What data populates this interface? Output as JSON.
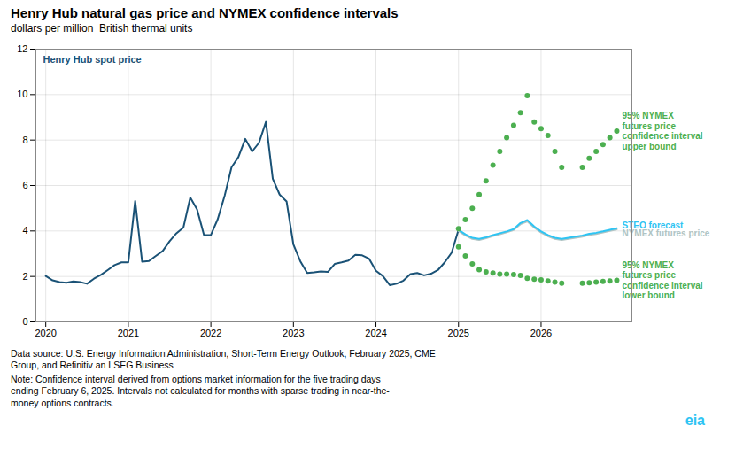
{
  "chart_data": {
    "type": "line",
    "title": "Henry Hub natural gas price and NYMEX confidence intervals",
    "subtitle": "dollars per million  British thermal units",
    "xlim": [
      2019.88,
      2027.1
    ],
    "xticks": [
      2020,
      2021,
      2022,
      2023,
      2024,
      2025,
      2026
    ],
    "ylim": [
      0,
      12
    ],
    "yticks": [
      0,
      2,
      4,
      6,
      8,
      10,
      12
    ],
    "grid": true,
    "series": [
      {
        "name": "Henry Hub spot price",
        "color": "#1A5276",
        "x": [
          2020.0,
          2020.083,
          2020.167,
          2020.25,
          2020.333,
          2020.417,
          2020.5,
          2020.583,
          2020.667,
          2020.75,
          2020.833,
          2020.917,
          2021.0,
          2021.083,
          2021.167,
          2021.25,
          2021.333,
          2021.417,
          2021.5,
          2021.583,
          2021.667,
          2021.75,
          2021.833,
          2021.917,
          2022.0,
          2022.083,
          2022.167,
          2022.25,
          2022.333,
          2022.417,
          2022.5,
          2022.583,
          2022.667,
          2022.75,
          2022.833,
          2022.917,
          2023.0,
          2023.083,
          2023.167,
          2023.25,
          2023.333,
          2023.417,
          2023.5,
          2023.583,
          2023.667,
          2023.75,
          2023.833,
          2023.917,
          2024.0,
          2024.083,
          2024.167,
          2024.25,
          2024.333,
          2024.417,
          2024.5,
          2024.583,
          2024.667,
          2024.75,
          2024.833,
          2024.917,
          2025.0
        ],
        "values": [
          2.02,
          1.83,
          1.75,
          1.72,
          1.78,
          1.75,
          1.68,
          1.9,
          2.07,
          2.28,
          2.5,
          2.62,
          2.62,
          5.32,
          2.65,
          2.68,
          2.9,
          3.12,
          3.55,
          3.9,
          4.15,
          5.47,
          4.95,
          3.82,
          3.82,
          4.52,
          5.55,
          6.8,
          7.25,
          8.05,
          7.5,
          7.88,
          8.8,
          6.3,
          5.6,
          5.3,
          3.4,
          2.67,
          2.15,
          2.18,
          2.22,
          2.2,
          2.55,
          2.62,
          2.7,
          2.95,
          2.93,
          2.78,
          2.25,
          2.02,
          1.62,
          1.68,
          1.82,
          2.1,
          2.15,
          2.05,
          2.12,
          2.28,
          2.62,
          3.05,
          4.05
        ]
      },
      {
        "name": "NYMEX futures price",
        "color": "#B0C4C4",
        "x": [
          2025.0,
          2025.083,
          2025.167,
          2025.25,
          2025.333,
          2025.417,
          2025.5,
          2025.583,
          2025.667,
          2025.75,
          2025.833,
          2025.917,
          2026.0,
          2026.083,
          2026.167,
          2026.25,
          2026.333,
          2026.417,
          2026.5,
          2026.583,
          2026.667,
          2026.75,
          2026.833,
          2026.917
        ],
        "values": [
          4.0,
          3.8,
          3.65,
          3.6,
          3.68,
          3.78,
          3.86,
          3.94,
          4.04,
          4.3,
          4.42,
          4.15,
          3.93,
          3.77,
          3.65,
          3.6,
          3.65,
          3.7,
          3.75,
          3.83,
          3.87,
          3.93,
          4.0,
          4.07
        ]
      },
      {
        "name": "STEO forecast",
        "color": "#2EC4F3",
        "x": [
          2025.0,
          2025.083,
          2025.167,
          2025.25,
          2025.333,
          2025.417,
          2025.5,
          2025.583,
          2025.667,
          2025.75,
          2025.833,
          2025.917,
          2026.0,
          2026.083,
          2026.167,
          2026.25,
          2026.333,
          2026.417,
          2026.5,
          2026.583,
          2026.667,
          2026.75,
          2026.833,
          2026.917
        ],
        "values": [
          4.05,
          3.85,
          3.7,
          3.65,
          3.72,
          3.82,
          3.9,
          3.98,
          4.08,
          4.35,
          4.48,
          4.2,
          3.98,
          3.82,
          3.7,
          3.65,
          3.7,
          3.75,
          3.8,
          3.88,
          3.92,
          3.98,
          4.05,
          4.12
        ]
      },
      {
        "name": "95% NYMEX\nfutures price\nconfidence interval\nupper bound",
        "type": "scatter",
        "marker": "circle",
        "color": "#4CAF50",
        "x": [
          2025.0,
          2025.083,
          2025.167,
          2025.25,
          2025.333,
          2025.417,
          2025.5,
          2025.583,
          2025.667,
          2025.75,
          2025.833,
          2025.917,
          2026.0,
          2026.083,
          2026.167,
          2026.25,
          2026.5,
          2026.583,
          2026.667,
          2026.75,
          2026.833,
          2026.917
        ],
        "values": [
          4.1,
          4.5,
          5.0,
          5.6,
          6.2,
          6.9,
          7.5,
          8.1,
          8.65,
          9.2,
          9.95,
          8.8,
          8.5,
          8.2,
          7.5,
          6.8,
          6.8,
          7.2,
          7.5,
          7.8,
          8.1,
          8.4
        ]
      },
      {
        "name": "95% NYMEX\nfutures price\nconfidence interval\nlower bound",
        "type": "scatter",
        "marker": "circle",
        "color": "#4CAF50",
        "x": [
          2025.0,
          2025.083,
          2025.167,
          2025.25,
          2025.333,
          2025.417,
          2025.5,
          2025.583,
          2025.667,
          2025.75,
          2025.833,
          2025.917,
          2026.0,
          2026.083,
          2026.167,
          2026.25,
          2026.5,
          2026.583,
          2026.667,
          2026.75,
          2026.833,
          2026.917
        ],
        "values": [
          3.3,
          2.9,
          2.55,
          2.3,
          2.2,
          2.15,
          2.1,
          2.1,
          2.08,
          2.05,
          1.92,
          1.88,
          1.85,
          1.8,
          1.75,
          1.7,
          1.7,
          1.72,
          1.75,
          1.78,
          1.8,
          1.83
        ]
      }
    ],
    "annotations": [
      "Data source: U.S. Energy Information Administration, Short-Term Energy Outlook, February 2025, CME\nGroup, and Refinitiv an LSEG Business",
      "Note: Confidence interval derived from options market information for the five trading days\nending February 6, 2025. Intervals not calculated for months with sparse trading in near-the-\nmoney options contracts.",
      "eia"
    ]
  }
}
